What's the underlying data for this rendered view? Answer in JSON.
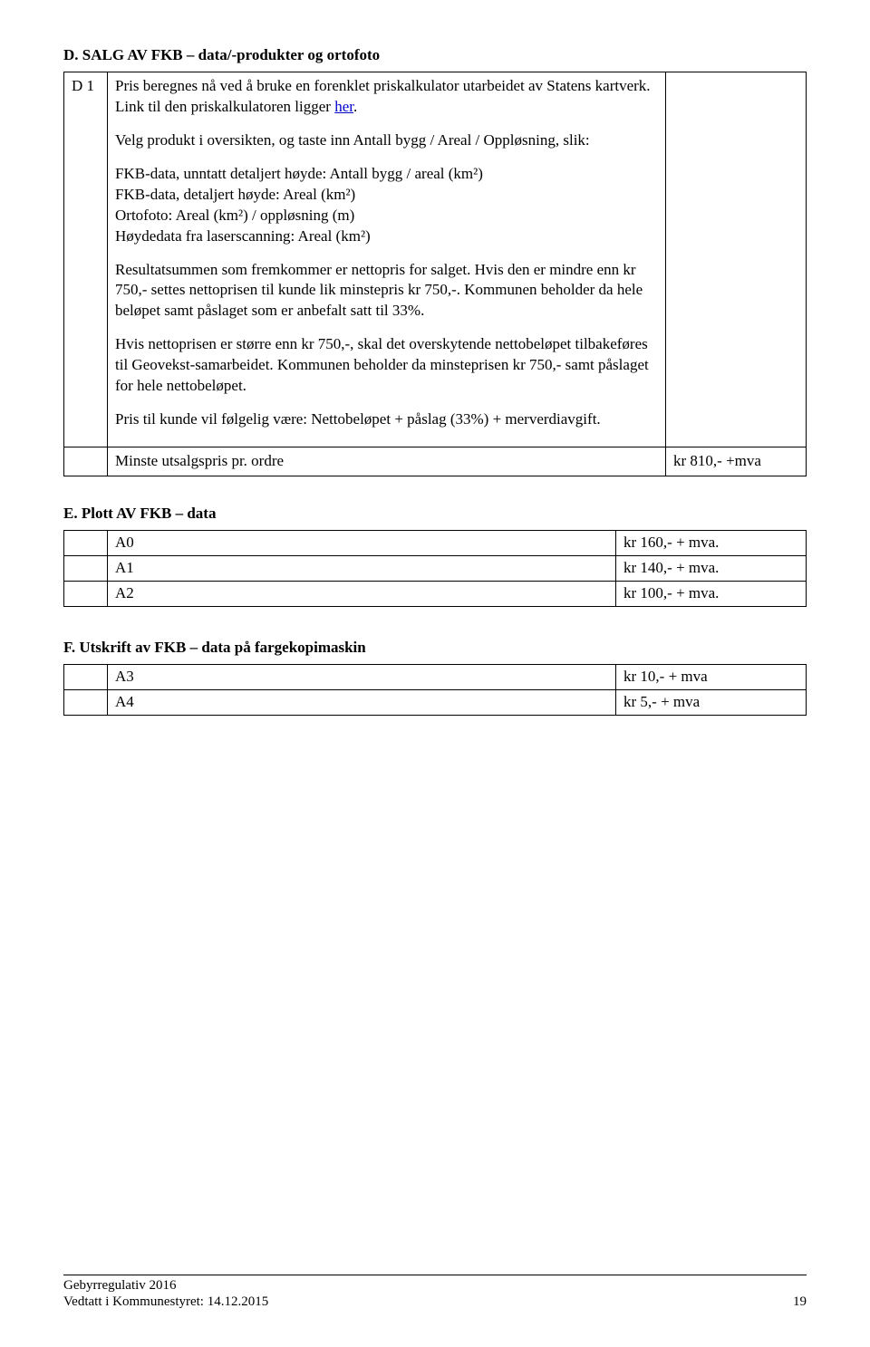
{
  "sectionD": {
    "heading": "D. SALG AV FKB – data/-produkter og ortofoto",
    "code": "D 1",
    "p1a": "Pris beregnes nå ved å bruke en forenklet priskalkulator utarbeidet av Statens kartverk. Link til den priskalkulatoren ligger ",
    "p1_link": "her",
    "p1b": ".",
    "p2": "Velg produkt i oversikten, og taste inn Antall bygg /  Areal / Oppløsning, slik:",
    "p3a": "FKB-data, unntatt detaljert høyde: Antall bygg / areal (km²)",
    "p3b": "FKB-data, detaljert høyde: Areal (km²)",
    "p3c": "Ortofoto: Areal (km²) / oppløsning (m)",
    "p3d": "Høydedata fra laserscanning: Areal (km²)",
    "p4": "Resultatsummen som fremkommer er nettopris for salget. Hvis den er mindre enn kr 750,- settes nettoprisen til kunde lik minstepris kr 750,-. Kommunen beholder da hele beløpet samt påslaget som er anbefalt satt til 33%.",
    "p5": "Hvis nettoprisen er større enn kr 750,-, skal det overskytende nettobeløpet tilbakeføres til Geovekst-samarbeidet. Kommunen beholder da minsteprisen kr 750,- samt påslaget for hele nettobeløpet.",
    "p6": "Pris til kunde vil følgelig være: Nettobeløpet + påslag (33%) + merverdiavgift.",
    "row2_label": "Minste utsalgspris pr. ordre",
    "row2_price": "kr 810,- +mva"
  },
  "sectionE": {
    "heading": "E. Plott AV FKB – data",
    "rows": [
      {
        "label": "A0",
        "price": "kr 160,- + mva."
      },
      {
        "label": "A1",
        "price": "kr 140,- + mva."
      },
      {
        "label": "A2",
        "price": "kr 100,- + mva."
      }
    ]
  },
  "sectionF": {
    "heading": "F. Utskrift av FKB – data på fargekopimaskin",
    "rows": [
      {
        "label": "A3",
        "price": "kr  10,- + mva"
      },
      {
        "label": "A4",
        "price": "kr    5,- + mva"
      }
    ]
  },
  "footer": {
    "line1": "Gebyrregulativ 2016",
    "line2": "Vedtatt i Kommunestyret: 14.12.2015",
    "page": "19"
  }
}
